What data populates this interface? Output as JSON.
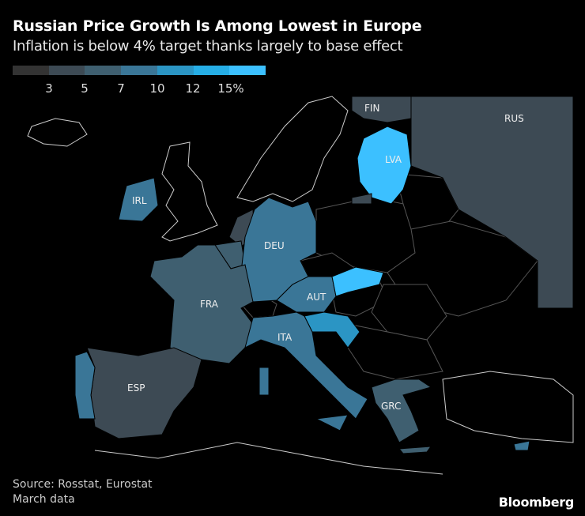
{
  "header": {
    "title": "Russian Price Growth Is Among Lowest in Europe",
    "subtitle": "Inflation is below 4% target thanks largely to base effect"
  },
  "legend": {
    "colors": [
      "#333333",
      "#3d4a54",
      "#3f5f70",
      "#3a7697",
      "#2b95c4",
      "#26aee6",
      "#3cc0ff"
    ],
    "ticks": [
      "3",
      "5",
      "7",
      "10",
      "12",
      "15%"
    ]
  },
  "map": {
    "countries": [
      {
        "code": "RUS",
        "label": "RUS",
        "color": "#3d4a54"
      },
      {
        "code": "FIN",
        "label": "FIN",
        "color": "#3d4a54"
      },
      {
        "code": "LVA",
        "label": "LVA",
        "color": "#3cc0ff"
      },
      {
        "code": "IRL",
        "label": "IRL",
        "color": "#3a7697"
      },
      {
        "code": "DEU",
        "label": "DEU",
        "color": "#3a7697"
      },
      {
        "code": "FRA",
        "label": "FRA",
        "color": "#3f5f70"
      },
      {
        "code": "AUT",
        "label": "AUT",
        "color": "#3a7697"
      },
      {
        "code": "ITA",
        "label": "ITA",
        "color": "#3a7697"
      },
      {
        "code": "ESP",
        "label": "ESP",
        "color": "#3d4a54"
      },
      {
        "code": "GRC",
        "label": "GRC",
        "color": "#3f5f70"
      }
    ]
  },
  "footer": {
    "source": "Source: Rosstat, Eurostat",
    "note": "March data",
    "brand": "Bloomberg"
  }
}
